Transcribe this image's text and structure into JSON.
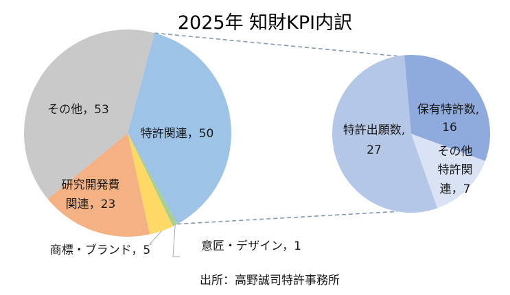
{
  "chart_data": {
    "type": "pie",
    "title": "2025年 知財KPI内訳",
    "source": "出所：高野誠司特許事務所",
    "main": {
      "slices": [
        {
          "label": "特許関連",
          "value": 50,
          "color": "#9dc3e6"
        },
        {
          "label": "意匠・デザイン",
          "value": 1,
          "color": "#a9d18e"
        },
        {
          "label": "商標・ブランド",
          "value": 5,
          "color": "#ffd966"
        },
        {
          "label": "研究開発費関連",
          "value": 23,
          "color": "#f4b183"
        },
        {
          "label": "その他",
          "value": 53,
          "color": "#c9c9c9"
        }
      ]
    },
    "detail": {
      "of": "特許関連",
      "slices": [
        {
          "label": "保有特許数",
          "value": 16,
          "color": "#8faadc"
        },
        {
          "label": "その他特許関連",
          "value": 7,
          "color": "#dae3f3"
        },
        {
          "label": "特許出願数",
          "value": 27,
          "color": "#b4c7e7"
        }
      ]
    }
  },
  "labels": {
    "patent": {
      "line1": "特許関連，50"
    },
    "design": {
      "line1": "意匠・デザイン，1"
    },
    "trademark": {
      "line1": "商標・ブランド，5"
    },
    "rnd": {
      "line1": "研究開発費",
      "line2": "関連，23"
    },
    "other": {
      "line1": "その他，53"
    },
    "holdings": {
      "line1": "保有特許数,",
      "line2": "16"
    },
    "other_patent": {
      "line1": "その他",
      "line2": "特許関",
      "line3": "連，7"
    },
    "applications": {
      "line1": "特許出願数,",
      "line2": "27"
    }
  }
}
